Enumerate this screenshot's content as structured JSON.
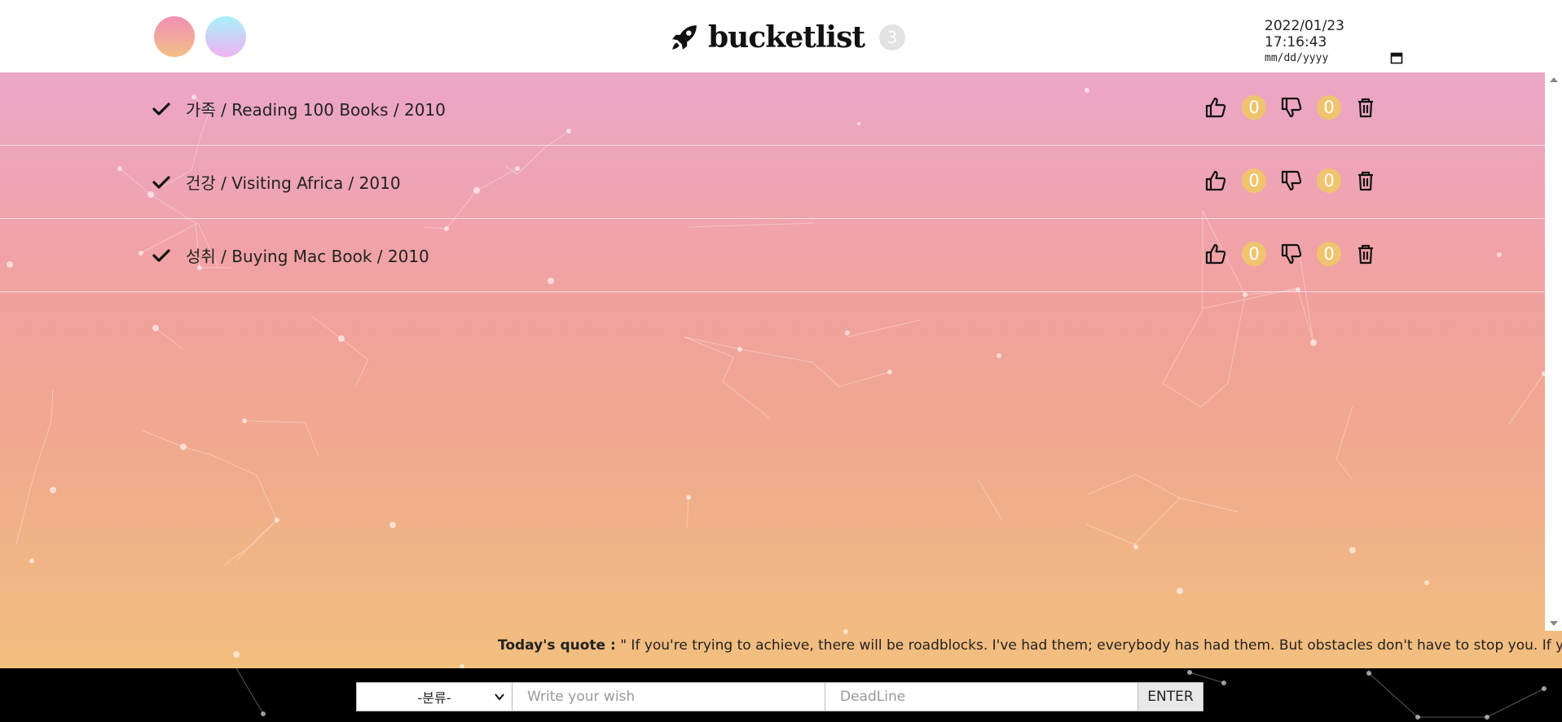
{
  "header": {
    "theme_swatches": [
      {
        "name": "pink-peach-theme",
        "colors": [
          "#ef8fb4",
          "#f3bf86"
        ]
      },
      {
        "name": "cyan-pink-theme",
        "colors": [
          "#a8f0fb",
          "#f0b2f2"
        ]
      }
    ],
    "logo_icon": "rocket-icon",
    "title": "bucketlist",
    "count": "3",
    "datetime": "2022/01/23 17:16:43",
    "date_placeholder": "mm/dd/yyyy",
    "calendar_icon": "calendar-icon"
  },
  "items": [
    {
      "text": "가족 / Reading 100 Books / 2010",
      "likes": "0",
      "dislikes": "0"
    },
    {
      "text": "건강 / Visiting Africa / 2010",
      "likes": "0",
      "dislikes": "0"
    },
    {
      "text": "성취 / Buying Mac Book / 2010",
      "likes": "0",
      "dislikes": "0"
    }
  ],
  "quote": {
    "label": "Today's quote :",
    "text": " \" If you're trying to achieve, there will be roadblocks. I've had them; everybody has had them. But obstacles don't have to stop you. If you run into"
  },
  "form": {
    "category_selected": "-분류-",
    "wish_placeholder": "Write your wish",
    "deadline_placeholder": "DeadLine",
    "enter_label": "ENTER"
  },
  "colors": {
    "gradient_top": "#eba4c6",
    "gradient_mid": "#f19fa0",
    "gradient_bottom": "#f2bf7e",
    "badge": "#f0c46e",
    "footer": "#000000"
  }
}
